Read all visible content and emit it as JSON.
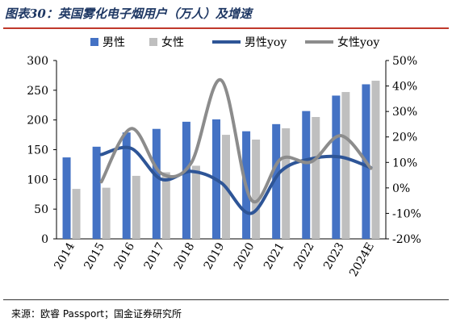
{
  "title": "图表30：英国雾化电子烟用户（万人）及增速",
  "source": "来源：欧睿 Passport；国金证券研究所",
  "chart_data": {
    "type": "bar",
    "categories": [
      "2014",
      "2015",
      "2016",
      "2017",
      "2018",
      "2019",
      "2020",
      "2021",
      "2022",
      "2023",
      "2024E"
    ],
    "series": [
      {
        "name": "男性",
        "kind": "bar",
        "axis": "left",
        "color": "#4472c4",
        "values": [
          137,
          155,
          179,
          185,
          197,
          201,
          181,
          193,
          215,
          241,
          260
        ]
      },
      {
        "name": "女性",
        "kind": "bar",
        "axis": "left",
        "color": "#bfbfbf",
        "values": [
          84,
          86,
          106,
          112,
          123,
          175,
          167,
          186,
          205,
          247,
          266
        ]
      },
      {
        "name": "男性yoy",
        "kind": "line",
        "axis": "right",
        "color": "#2e5597",
        "values": [
          null,
          13.1,
          15.5,
          3.4,
          6.5,
          2.0,
          -10.0,
          6.6,
          11.4,
          12.1,
          7.9
        ]
      },
      {
        "name": "女性yoy",
        "kind": "line",
        "axis": "right",
        "color": "#8c8c8c",
        "values": [
          null,
          2.4,
          23.3,
          5.7,
          9.8,
          42.3,
          -4.6,
          11.4,
          10.2,
          20.5,
          7.7
        ]
      }
    ],
    "y_left": {
      "ylim": [
        0,
        300
      ],
      "ticks": [
        "0",
        "50",
        "100",
        "150",
        "200",
        "250",
        "300"
      ]
    },
    "y_right": {
      "ylim": [
        -20,
        50
      ],
      "ticks": [
        "-20%",
        "-10%",
        "0%",
        "10%",
        "20%",
        "30%",
        "40%",
        "50%"
      ]
    },
    "legend_position": "top",
    "grid": false
  }
}
